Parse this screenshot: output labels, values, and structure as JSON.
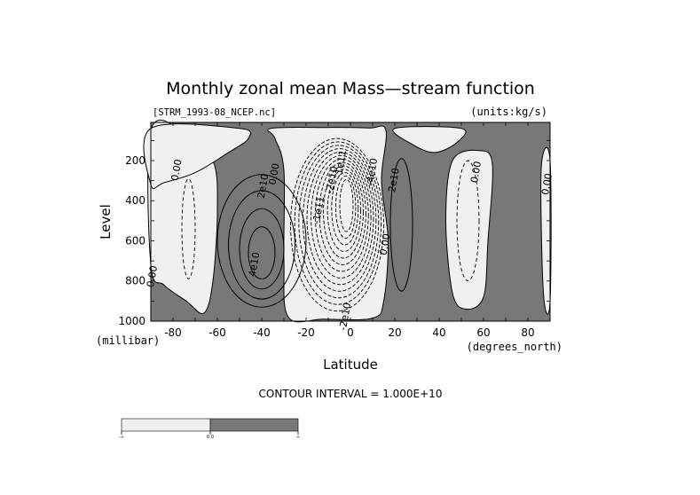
{
  "chart_data": {
    "type": "contour",
    "title": "Monthly zonal mean Mass—stream function",
    "source_label": "[STRM_1993-08_NCEP.nc]",
    "units_label": "(units:kg/s)",
    "xlabel": "Latitude",
    "x_units": "(degrees_north)",
    "ylabel": "Level",
    "y_units": "(millibar)",
    "xlim": [
      -90,
      90
    ],
    "ylim": [
      1000,
      10
    ],
    "x_ticks": [
      -80,
      -60,
      -40,
      -20,
      0,
      20,
      40,
      60,
      80
    ],
    "y_ticks": [
      200,
      400,
      600,
      800,
      1000
    ],
    "contour_interval_text": "CONTOUR INTERVAL = 1.000E+10",
    "contour_labels": [
      {
        "text": "0.00",
        "lat": -77,
        "lev": 250
      },
      {
        "text": "2e10",
        "lat": -38,
        "lev": 330
      },
      {
        "text": "4e10",
        "lat": -42,
        "lev": 720
      },
      {
        "text": "0.00",
        "lat": -88,
        "lev": 780
      },
      {
        "text": "0.00",
        "lat": -33,
        "lev": 270
      },
      {
        "text": "-1e11",
        "lat": -13,
        "lev": 450
      },
      {
        "text": "-1e11",
        "lat": -3,
        "lev": 220
      },
      {
        "text": "-2e10",
        "lat": -7,
        "lev": 300
      },
      {
        "text": "-2e10",
        "lat": -1,
        "lev": 980
      },
      {
        "text": "-4e10",
        "lat": 11,
        "lev": 260
      },
      {
        "text": "2e10",
        "lat": 21,
        "lev": 300
      },
      {
        "text": "0.00",
        "lat": 17,
        "lev": 620
      },
      {
        "text": "0.00",
        "lat": 58,
        "lev": 260
      },
      {
        "text": "0.00",
        "lat": 90,
        "lev": 320
      }
    ],
    "regions": [
      {
        "name": "sh-polar-cell",
        "sign": "negative",
        "lat_range": [
          -90,
          -62
        ]
      },
      {
        "name": "sh-ferrel-cell",
        "sign": "positive",
        "lat_range": [
          -62,
          -28
        ],
        "peak": 40000000000.0
      },
      {
        "name": "hadley-winter-cell",
        "sign": "negative",
        "lat_range": [
          -28,
          15
        ],
        "peak": -150000000000.0
      },
      {
        "name": "nh-cell",
        "sign": "positive",
        "lat_range": [
          15,
          42
        ],
        "peak": 20000000000.0
      },
      {
        "name": "nh-ferrel-cell",
        "sign": "negative",
        "lat_range": [
          42,
          65
        ]
      },
      {
        "name": "nh-polar-cell",
        "sign": "positive",
        "lat_range": [
          65,
          90
        ]
      }
    ],
    "colors": {
      "negative_fill": "#f0f0f0",
      "positive_fill": "#787878",
      "line": "#000000"
    },
    "colorbar": {
      "tick_labels": [
        "-∞",
        "0.0",
        "∞"
      ],
      "colors": [
        "#f0f0f0",
        "#787878"
      ]
    }
  }
}
